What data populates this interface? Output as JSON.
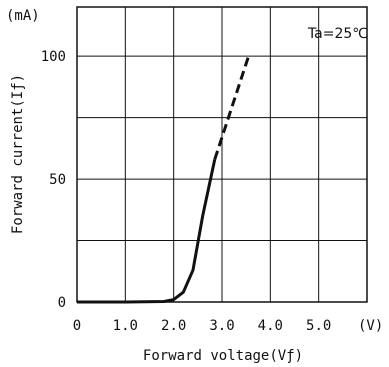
{
  "chart_data": {
    "type": "line",
    "title": "",
    "annotation": "Ta=25℃",
    "xlabel": "Forward voltage(Vƒ)",
    "ylabel": "Forward current(Iƒ)",
    "x_unit": "(V)",
    "y_unit": "(mA)",
    "xlim": [
      0,
      6.0
    ],
    "ylim": [
      0,
      120
    ],
    "x_ticks": [
      {
        "value": 0,
        "label": "0"
      },
      {
        "value": 1.0,
        "label": "1.0"
      },
      {
        "value": 2.0,
        "label": "2.0"
      },
      {
        "value": 3.0,
        "label": "3.0"
      },
      {
        "value": 4.0,
        "label": "4.0"
      },
      {
        "value": 5.0,
        "label": "5.0"
      }
    ],
    "y_ticks": [
      {
        "value": 0,
        "label": "0"
      },
      {
        "value": 50,
        "label": "50"
      },
      {
        "value": 100,
        "label": "100"
      }
    ],
    "grid": true,
    "series": [
      {
        "style": "solid",
        "x": [
          0,
          1.0,
          1.8,
          2.0,
          2.2,
          2.4,
          2.6,
          2.85
        ],
        "y": [
          0,
          0,
          0.2,
          1,
          4,
          13,
          35,
          58
        ]
      },
      {
        "style": "dashed",
        "x": [
          2.85,
          3.1,
          3.35,
          3.55
        ],
        "y": [
          58,
          73,
          88,
          100
        ]
      }
    ]
  }
}
